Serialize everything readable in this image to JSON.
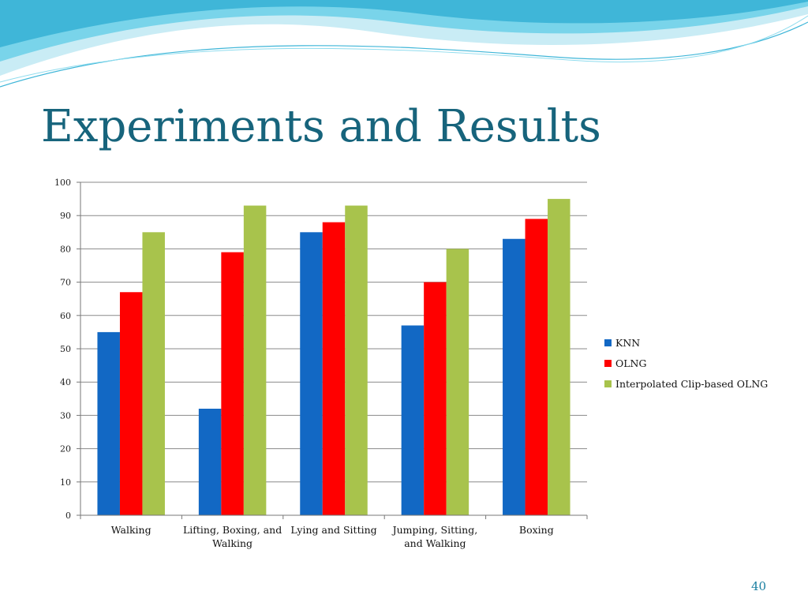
{
  "slide": {
    "title": "Experiments and Results",
    "page_number": "40"
  },
  "colors": {
    "title": "#17647c",
    "accent_wave": "#5fc9e2",
    "gridline": "#8a8a8a"
  },
  "chart_data": {
    "type": "bar",
    "categories": [
      "Walking",
      "Lifting, Boxing, and Walking",
      "Lying and Sitting",
      "Jumping, Sitting, and Walking",
      "Boxing"
    ],
    "category_label_lines": [
      [
        "Walking"
      ],
      [
        "Lifting, Boxing, and",
        "Walking"
      ],
      [
        "Lying and Sitting"
      ],
      [
        "Jumping, Sitting,",
        "and Walking"
      ],
      [
        "Boxing"
      ]
    ],
    "series": [
      {
        "name": "KNN",
        "color": "#1268c4",
        "values": [
          55,
          32,
          85,
          57,
          83
        ]
      },
      {
        "name": "OLNG",
        "color": "#ff0000",
        "values": [
          67,
          79,
          88,
          70,
          89
        ]
      },
      {
        "name": "Interpolated Clip-based OLNG",
        "color": "#a8c34c",
        "values": [
          85,
          93,
          93,
          80,
          95
        ]
      }
    ],
    "yticks": [
      0,
      10,
      20,
      30,
      40,
      50,
      60,
      70,
      80,
      90,
      100
    ],
    "ylim": [
      0,
      100
    ],
    "grid": true,
    "legend_position": "right"
  }
}
